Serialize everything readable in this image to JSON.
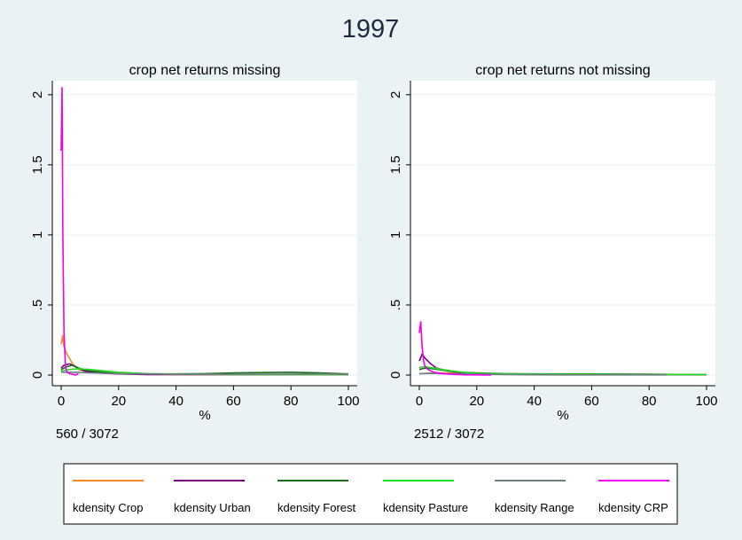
{
  "chart_data": {
    "type": "line",
    "title": "1997",
    "colors": {
      "background": "#eaf2f3",
      "plot_background": "#ffffff",
      "grid": "#eaf2f3",
      "Crop": "#f5891f",
      "Urban": "#7a0080",
      "Forest": "#1a6b1a",
      "Pasture": "#22e022",
      "Range": "#6e8080",
      "CRP": "#f000f0"
    },
    "panels": [
      {
        "title": "crop net returns missing",
        "xlabel": "%",
        "note": "560 / 3072",
        "xlim": [
          0,
          100
        ],
        "ylim": [
          0,
          2.1
        ],
        "xticks": [
          "0",
          "20",
          "40",
          "60",
          "80",
          "100"
        ],
        "yticks": [
          "0",
          ".5",
          "1",
          "1.5",
          "2"
        ],
        "grid": true,
        "series": [
          {
            "name": "kdensity Crop",
            "color_key": "Crop",
            "x": [
              0,
              0.5,
              1,
              2,
              4,
              6,
              10,
              15,
              20,
              30,
              40,
              60,
              80,
              90,
              100
            ],
            "y": [
              0.22,
              0.28,
              0.2,
              0.15,
              0.08,
              0.04,
              0.02,
              0.015,
              0.01,
              0.005,
              0.004,
              0.004,
              0.004,
              0.004,
              0.003
            ]
          },
          {
            "name": "kdensity Urban",
            "color_key": "Urban",
            "x": [
              0,
              1,
              3,
              5,
              8,
              12,
              20,
              30,
              40,
              60,
              80,
              100
            ],
            "y": [
              0.05,
              0.07,
              0.08,
              0.06,
              0.03,
              0.015,
              0.008,
              0.004,
              0.003,
              0.003,
              0.003,
              0.003
            ]
          },
          {
            "name": "kdensity Forest",
            "color_key": "Forest",
            "x": [
              0,
              2,
              4,
              6,
              10,
              15,
              20,
              30,
              40,
              50,
              60,
              70,
              80,
              90,
              100
            ],
            "y": [
              0.04,
              0.06,
              0.07,
              0.05,
              0.03,
              0.02,
              0.01,
              0.008,
              0.008,
              0.01,
              0.015,
              0.018,
              0.02,
              0.015,
              0.008
            ]
          },
          {
            "name": "kdensity Pasture",
            "color_key": "Pasture",
            "x": [
              0,
              3,
              6,
              10,
              15,
              20,
              25,
              30,
              40,
              60,
              80,
              100
            ],
            "y": [
              0.03,
              0.04,
              0.045,
              0.04,
              0.03,
              0.02,
              0.015,
              0.01,
              0.006,
              0.004,
              0.003,
              0.003
            ]
          },
          {
            "name": "kdensity Range",
            "color_key": "Range",
            "x": [
              0,
              5,
              10,
              20,
              30,
              40,
              50,
              60,
              70,
              80,
              90,
              100
            ],
            "y": [
              0.02,
              0.02,
              0.015,
              0.01,
              0.008,
              0.006,
              0.006,
              0.006,
              0.006,
              0.007,
              0.008,
              0.006
            ]
          },
          {
            "name": "kdensity CRP",
            "color_key": "CRP",
            "x": [
              0,
              0.3,
              0.6,
              1,
              1.5,
              2,
              3,
              4,
              5,
              6
            ],
            "y": [
              1.6,
              2.05,
              1.0,
              0.3,
              0.06,
              0.02,
              0.01,
              0.005,
              0.0,
              0.01
            ]
          }
        ]
      },
      {
        "title": "crop net returns not missing",
        "xlabel": "%",
        "note": "2512 / 3072",
        "xlim": [
          0,
          100
        ],
        "ylim": [
          0,
          2.1
        ],
        "xticks": [
          "0",
          "20",
          "40",
          "60",
          "80",
          "100"
        ],
        "yticks": [
          "0",
          ".5",
          "1",
          "1.5",
          "2"
        ],
        "grid": true,
        "series": [
          {
            "name": "kdensity Crop",
            "color_key": "Crop",
            "x": [
              0,
              5,
              10,
              20,
              30,
              40,
              50,
              60,
              70,
              80,
              90,
              99
            ],
            "y": [
              0.01,
              0.015,
              0.015,
              0.01,
              0.008,
              0.007,
              0.007,
              0.007,
              0.006,
              0.005,
              0.004,
              0.003
            ]
          },
          {
            "name": "kdensity Urban",
            "color_key": "Urban",
            "x": [
              0,
              1,
              2,
              4,
              6,
              10,
              15,
              20,
              30,
              40,
              60,
              80,
              100
            ],
            "y": [
              0.1,
              0.15,
              0.12,
              0.08,
              0.05,
              0.03,
              0.015,
              0.01,
              0.006,
              0.004,
              0.003,
              0.003,
              0.002
            ]
          },
          {
            "name": "kdensity Forest",
            "color_key": "Forest",
            "x": [
              0,
              2,
              5,
              10,
              15,
              20,
              30,
              40,
              60,
              80,
              100
            ],
            "y": [
              0.04,
              0.05,
              0.045,
              0.03,
              0.02,
              0.015,
              0.01,
              0.008,
              0.008,
              0.006,
              0.004
            ]
          },
          {
            "name": "kdensity Pasture",
            "color_key": "Pasture",
            "x": [
              0,
              2,
              5,
              8,
              12,
              16,
              20,
              30,
              40,
              60,
              80,
              100
            ],
            "y": [
              0.055,
              0.06,
              0.05,
              0.04,
              0.028,
              0.018,
              0.012,
              0.008,
              0.006,
              0.005,
              0.004,
              0.003
            ]
          },
          {
            "name": "kdensity Range",
            "color_key": "Range",
            "x": [
              0,
              5,
              10,
              20,
              30,
              40,
              50,
              60,
              70,
              80,
              86
            ],
            "y": [
              0.01,
              0.012,
              0.01,
              0.006,
              0.004,
              0.002,
              0.001,
              0.001,
              0.001,
              0.001,
              0.001
            ]
          },
          {
            "name": "kdensity CRP",
            "color_key": "CRP",
            "x": [
              0,
              0.5,
              1,
              1.5,
              2,
              3,
              5,
              8,
              12,
              16,
              20,
              25
            ],
            "y": [
              0.3,
              0.38,
              0.2,
              0.1,
              0.06,
              0.04,
              0.02,
              0.01,
              0.005,
              0.002,
              0.001,
              0.0
            ]
          }
        ]
      }
    ],
    "legend": {
      "placement": "bottom",
      "items": [
        {
          "label": "kdensity Crop",
          "color_key": "Crop"
        },
        {
          "label": "kdensity Urban",
          "color_key": "Urban"
        },
        {
          "label": "kdensity Forest",
          "color_key": "Forest"
        },
        {
          "label": "kdensity Pasture",
          "color_key": "Pasture"
        },
        {
          "label": "kdensity Range",
          "color_key": "Range"
        },
        {
          "label": "kdensity CRP",
          "color_key": "CRP"
        }
      ]
    }
  }
}
